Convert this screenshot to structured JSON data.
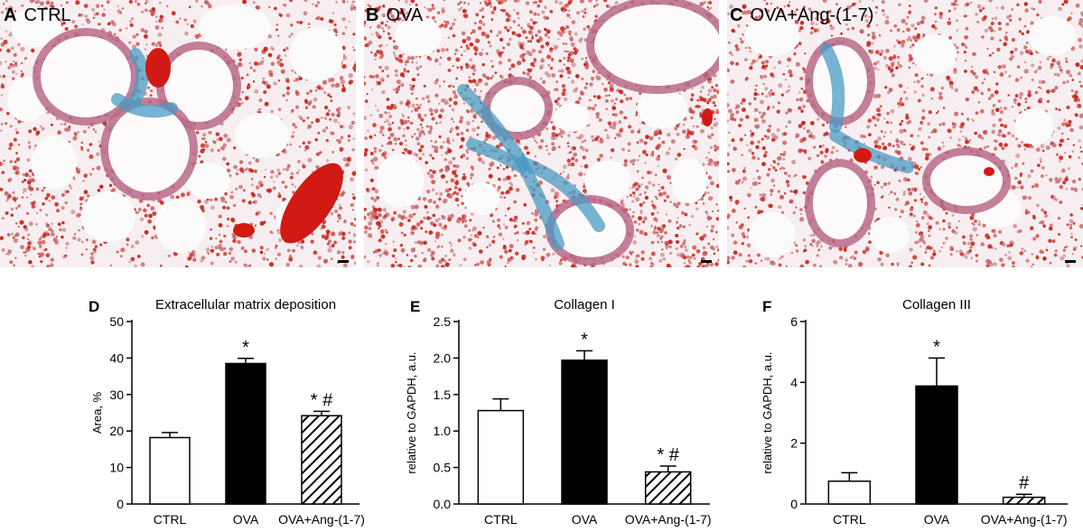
{
  "panels": [
    {
      "letter": "A",
      "title": "CTRL"
    },
    {
      "letter": "B",
      "title": "OVA"
    },
    {
      "letter": "C",
      "title": "OVA+Ang-(1-7)"
    }
  ],
  "colors": {
    "tissue_bg": "#f6eef0",
    "alveolar_wall": "#c8737a",
    "nuclei": "#c8281e",
    "collagen": "#4a9bc4",
    "airway": "#b86b8a",
    "blood": "#d11a14",
    "bar_ctrl": "#ffffff",
    "bar_ova": "#000000",
    "bar_ang_hatch": "#000000"
  },
  "chart_data": [
    {
      "letter": "D",
      "type": "bar",
      "title": "Extracellular matrix deposition",
      "xlabel": "",
      "ylabel": "Area, %",
      "ylim": [
        0,
        50
      ],
      "yticks": [
        "0",
        "10",
        "20",
        "30",
        "40",
        "50"
      ],
      "ytick_values": [
        0,
        10,
        20,
        30,
        40,
        50
      ],
      "categories": [
        "CTRL",
        "OVA",
        "OVA+Ang-(1-7)"
      ],
      "values": [
        18.2,
        38.5,
        24.2
      ],
      "errors": [
        1.4,
        1.4,
        1.2
      ],
      "annotations": [
        "",
        "*",
        "* #"
      ],
      "fills": [
        "white",
        "black",
        "hatch"
      ]
    },
    {
      "letter": "E",
      "type": "bar",
      "title": "Collagen I",
      "xlabel": "",
      "ylabel": "relative to GAPDH, a.u.",
      "ylim": [
        0,
        2.5
      ],
      "yticks": [
        "0.0",
        "0.5",
        "1.0",
        "1.5",
        "2.0",
        "2.5"
      ],
      "ytick_values": [
        0,
        0.5,
        1.0,
        1.5,
        2.0,
        2.5
      ],
      "categories": [
        "CTRL",
        "OVA",
        "OVA+Ang-(1-7)"
      ],
      "values": [
        1.28,
        1.97,
        0.44
      ],
      "errors": [
        0.16,
        0.13,
        0.08
      ],
      "annotations": [
        "",
        "*",
        "* #"
      ],
      "fills": [
        "white",
        "black",
        "hatch"
      ]
    },
    {
      "letter": "F",
      "type": "bar",
      "title": "Collagen III",
      "xlabel": "",
      "ylabel": "relative to GAPDH, a.u.",
      "ylim": [
        0,
        6
      ],
      "yticks": [
        "0",
        "2",
        "4",
        "6"
      ],
      "ytick_values": [
        0,
        2,
        4,
        6
      ],
      "categories": [
        "CTRL",
        "OVA",
        "OVA+Ang-(1-7)"
      ],
      "values": [
        0.75,
        3.88,
        0.22
      ],
      "errors": [
        0.28,
        0.92,
        0.1
      ],
      "annotations": [
        "",
        "*",
        "#"
      ],
      "fills": [
        "white",
        "black",
        "hatch"
      ]
    }
  ]
}
